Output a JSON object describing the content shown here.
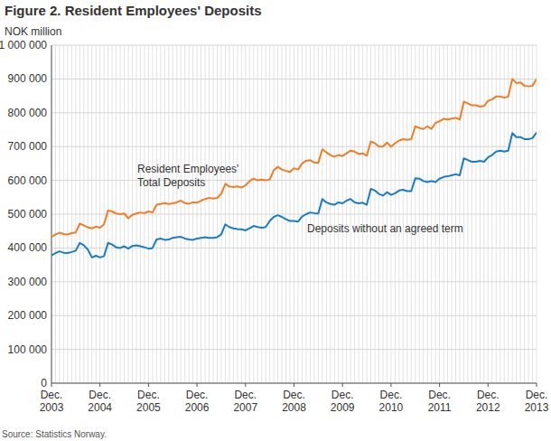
{
  "chart_data": {
    "type": "line",
    "title": "Figure 2. Resident Employees' Deposits",
    "y_label": "NOK million",
    "source": "Source: Statistics Norway.",
    "grid": true,
    "categories": [
      "Dec. 2003",
      null,
      null,
      null,
      null,
      null,
      null,
      null,
      null,
      null,
      null,
      null,
      "Dec. 2004",
      null,
      null,
      null,
      null,
      null,
      null,
      null,
      null,
      null,
      null,
      null,
      "Dec. 2005",
      null,
      null,
      null,
      null,
      null,
      null,
      null,
      null,
      null,
      null,
      null,
      "Dec. 2006",
      null,
      null,
      null,
      null,
      null,
      null,
      null,
      null,
      null,
      null,
      null,
      "Dec. 2007",
      null,
      null,
      null,
      null,
      null,
      null,
      null,
      null,
      null,
      null,
      null,
      "Dec. 2008",
      null,
      null,
      null,
      null,
      null,
      null,
      null,
      null,
      null,
      null,
      null,
      "Dec. 2009",
      null,
      null,
      null,
      null,
      null,
      null,
      null,
      null,
      null,
      null,
      null,
      "Dec. 2010",
      null,
      null,
      null,
      null,
      null,
      null,
      null,
      null,
      null,
      null,
      null,
      "Dec. 2011",
      null,
      null,
      null,
      null,
      null,
      null,
      null,
      null,
      null,
      null,
      null,
      "Dec. 2012",
      null,
      null,
      null,
      null,
      null,
      null,
      null,
      null,
      null,
      null,
      null,
      "Dec. 2013"
    ],
    "series": [
      {
        "name": "Resident Employees' Total Deposits",
        "color": "#f07e26",
        "values": [
          433000,
          440000,
          445000,
          441000,
          440000,
          444000,
          446000,
          472000,
          467000,
          461000,
          458000,
          463000,
          460000,
          470000,
          511000,
          508000,
          502000,
          500000,
          502000,
          488000,
          498000,
          502000,
          505000,
          503000,
          508000,
          505000,
          528000,
          530000,
          533000,
          530000,
          532000,
          535000,
          540000,
          533000,
          531000,
          535000,
          534000,
          540000,
          545000,
          548000,
          546000,
          548000,
          560000,
          590000,
          582000,
          580000,
          582000,
          579000,
          585000,
          598000,
          605000,
          600000,
          602000,
          600000,
          603000,
          630000,
          640000,
          632000,
          628000,
          625000,
          636000,
          632000,
          650000,
          658000,
          660000,
          653000,
          652000,
          692000,
          683000,
          675000,
          670000,
          675000,
          672000,
          680000,
          688000,
          685000,
          678000,
          680000,
          673000,
          715000,
          710000,
          700000,
          700000,
          712000,
          700000,
          710000,
          718000,
          722000,
          720000,
          722000,
          760000,
          755000,
          752000,
          760000,
          752000,
          770000,
          775000,
          782000,
          780000,
          783000,
          785000,
          780000,
          833000,
          828000,
          822000,
          822000,
          818000,
          820000,
          835000,
          840000,
          848000,
          848000,
          845000,
          848000,
          900000,
          888000,
          890000,
          880000,
          878000,
          880000,
          900000
        ]
      },
      {
        "name": "Deposits without an agreed term",
        "color": "#1a7dc4",
        "values": [
          378000,
          385000,
          390000,
          386000,
          385000,
          388000,
          392000,
          415000,
          408000,
          395000,
          372000,
          377000,
          372000,
          376000,
          415000,
          410000,
          402000,
          400000,
          405000,
          398000,
          406000,
          408000,
          405000,
          402000,
          398000,
          400000,
          425000,
          428000,
          424000,
          425000,
          430000,
          432000,
          433000,
          428000,
          425000,
          424000,
          428000,
          430000,
          432000,
          430000,
          430000,
          432000,
          440000,
          470000,
          462000,
          458000,
          456000,
          455000,
          452000,
          458000,
          465000,
          462000,
          460000,
          462000,
          480000,
          492000,
          497000,
          492000,
          485000,
          480000,
          480000,
          478000,
          493000,
          500000,
          505000,
          503000,
          502000,
          545000,
          535000,
          530000,
          528000,
          535000,
          532000,
          540000,
          545000,
          535000,
          532000,
          534000,
          528000,
          575000,
          570000,
          560000,
          555000,
          565000,
          557000,
          562000,
          570000,
          572000,
          568000,
          568000,
          606000,
          605000,
          598000,
          595000,
          598000,
          595000,
          605000,
          610000,
          612000,
          615000,
          618000,
          615000,
          665000,
          660000,
          655000,
          655000,
          658000,
          655000,
          668000,
          675000,
          685000,
          688000,
          685000,
          688000,
          740000,
          728000,
          728000,
          722000,
          722000,
          725000,
          742000
        ]
      }
    ],
    "ylim": [
      0,
      1000000
    ],
    "yticks": [
      0,
      {
        "value": 100000,
        "label": "100 000"
      },
      {
        "value": 200000,
        "label": "200 000"
      },
      {
        "value": 300000,
        "label": "300 000"
      },
      {
        "value": 400000,
        "label": "400 000"
      },
      {
        "value": 500000,
        "label": "500 000"
      },
      {
        "value": 600000,
        "label": "600 000"
      },
      {
        "value": 700000,
        "label": "700 000"
      },
      {
        "value": 800000,
        "label": "800 000"
      },
      {
        "value": 900000,
        "label": "900 000"
      },
      {
        "value": 1000000,
        "label": "1 000 000"
      }
    ]
  }
}
